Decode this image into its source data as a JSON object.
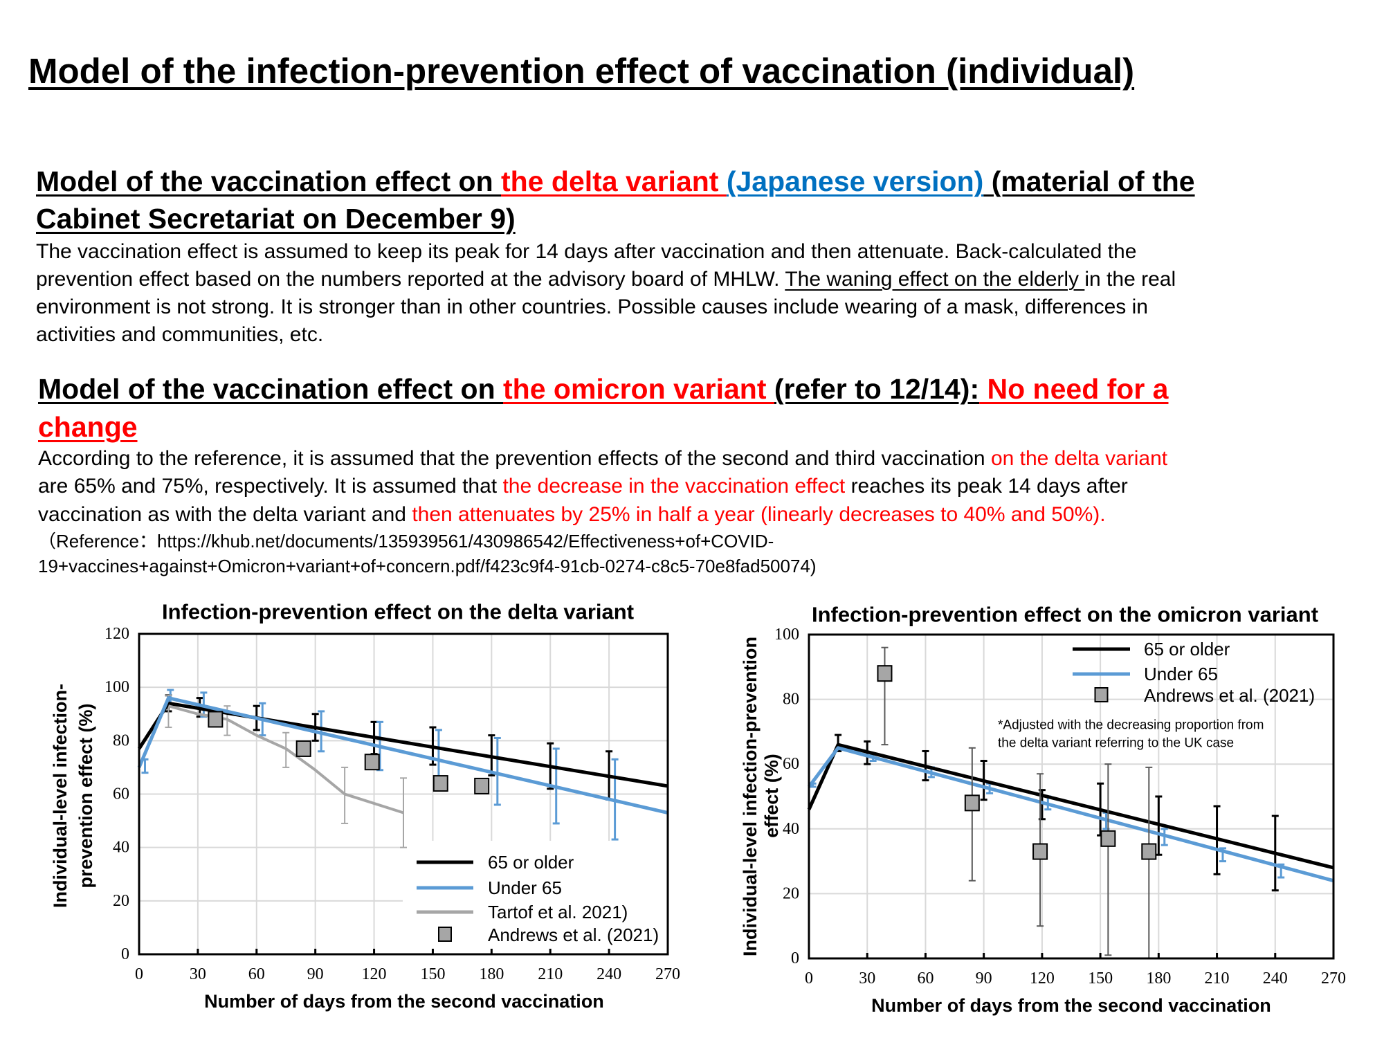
{
  "title": "Model of the infection-prevention effect of vaccination (individual)",
  "colors": {
    "red": "#ff0000",
    "blue": "#0070c0",
    "black": "#000000"
  },
  "section1": {
    "heading": [
      [
        {
          "text": "Model of the vaccination effect on ",
          "color": "black",
          "u": true
        },
        {
          "text": "the delta variant ",
          "color": "red",
          "u": true
        },
        {
          "text": "(Japanese version)",
          "color": "blue",
          "u": true
        },
        {
          "text": " (material of the",
          "color": "black",
          "u": true
        }
      ],
      [
        {
          "text": "Cabinet Secretariat on December 9)",
          "color": "black",
          "u": true
        }
      ]
    ],
    "body": [
      [
        {
          "text": "The vaccination effect is assumed to keep its peak for 14 days after vaccination and then attenuate. Back-calculated the",
          "color": "black"
        }
      ],
      [
        {
          "text": "prevention effect based on the numbers reported at the advisory board of MHLW. ",
          "color": "black"
        },
        {
          "text": "The waning effect on the elderly ",
          "color": "black",
          "u": true
        },
        {
          "text": "in the real",
          "color": "black"
        }
      ],
      [
        {
          "text": "environment is not strong. It is stronger than in other countries. Possible causes include wearing of a mask, differences in",
          "color": "black"
        }
      ],
      [
        {
          "text": "activities and communities, etc.",
          "color": "black"
        }
      ]
    ]
  },
  "section2": {
    "heading": [
      [
        {
          "text": "Model of the vaccination effect on ",
          "color": "black",
          "u": true
        },
        {
          "text": "the omicron variant ",
          "color": "red",
          "u": true
        },
        {
          "text": "(refer to 12/14):",
          "color": "black",
          "u": true
        },
        {
          "text": " No need for a",
          "color": "red",
          "u": true
        }
      ],
      [
        {
          "text": "change",
          "color": "red",
          "u": true
        }
      ]
    ],
    "body": [
      [
        {
          "text": "According to the reference, it is assumed that the prevention effects of the second and third vaccination ",
          "color": "black"
        },
        {
          "text": "on the delta variant",
          "color": "red"
        }
      ],
      [
        {
          "text": "are 65% and 75%, respectively. It is assumed that ",
          "color": "black"
        },
        {
          "text": "the decrease in the vaccination effect",
          "color": "red"
        },
        {
          "text": " reaches its peak 14 days after",
          "color": "black"
        }
      ],
      [
        {
          "text": "vaccination as with the delta variant and ",
          "color": "black"
        },
        {
          "text": "then attenuates by 25% in half a year (linearly decreases to 40% and 50%).",
          "color": "red"
        }
      ]
    ],
    "reference": [
      [
        {
          "text": "（Reference：https://khub.net/documents/135939561/430986542/Effectiveness+of+COVID-",
          "color": "black"
        }
      ],
      [
        {
          "text": "19+vaccines+against+Omicron+variant+of+concern.pdf/f423c9f4-91cb-0274-c8c5-70e8fad50074)",
          "color": "black"
        }
      ]
    ]
  },
  "chart_data": [
    {
      "type": "line",
      "title": "Infection-prevention effect on the delta variant",
      "xlabel": "Number of days from the second vaccination",
      "ylabel_lines": [
        "Individual-level infection-",
        "prevention effect (%)"
      ],
      "xlim": [
        0,
        270
      ],
      "ylim": [
        0,
        120
      ],
      "xticks": [
        0,
        30,
        60,
        90,
        120,
        150,
        180,
        210,
        240,
        270
      ],
      "yticks": [
        0,
        20,
        40,
        60,
        80,
        100,
        120
      ],
      "grid": true,
      "legend_position": "bottom-right",
      "series": [
        {
          "name": "65 or older",
          "color": "#000000",
          "x": [
            0,
            15,
            270
          ],
          "y": [
            77,
            94,
            63
          ],
          "error_bars": [
            {
              "x": 15,
              "low": 91,
              "high": 97
            },
            {
              "x": 31,
              "low": 89,
              "high": 96
            },
            {
              "x": 60,
              "low": 84,
              "high": 93
            },
            {
              "x": 90,
              "low": 80,
              "high": 90
            },
            {
              "x": 120,
              "low": 75,
              "high": 87
            },
            {
              "x": 150,
              "low": 71,
              "high": 85
            },
            {
              "x": 180,
              "low": 67,
              "high": 82
            },
            {
              "x": 210,
              "low": 62,
              "high": 79
            },
            {
              "x": 240,
              "low": 58,
              "high": 76
            }
          ]
        },
        {
          "name": "Under 65",
          "color": "#5b9bd5",
          "x": [
            0,
            15,
            270
          ],
          "y": [
            70,
            96,
            53
          ],
          "error_bars": [
            {
              "x": 3,
              "low": 68,
              "high": 73
            },
            {
              "x": 16,
              "low": 93,
              "high": 99
            },
            {
              "x": 33,
              "low": 89,
              "high": 98
            },
            {
              "x": 63,
              "low": 82,
              "high": 94
            },
            {
              "x": 93,
              "low": 76,
              "high": 91
            },
            {
              "x": 123,
              "low": 69,
              "high": 87
            },
            {
              "x": 153,
              "low": 62,
              "high": 84
            },
            {
              "x": 183,
              "low": 56,
              "high": 81
            },
            {
              "x": 213,
              "low": 49,
              "high": 77
            },
            {
              "x": 243,
              "low": 43,
              "high": 73
            }
          ]
        },
        {
          "name": "Tartof et al.  2021)",
          "color": "#a6a6a6",
          "x": [
            15,
            30,
            45,
            60,
            75,
            90,
            105,
            135
          ],
          "y": [
            93,
            90,
            88,
            82,
            77,
            69,
            60,
            53
          ],
          "error_bars": [
            {
              "x": 15,
              "low": 85,
              "high": 97
            },
            {
              "x": 45,
              "low": 82,
              "high": 93
            },
            {
              "x": 75,
              "low": 70,
              "high": 83
            },
            {
              "x": 105,
              "low": 49,
              "high": 70
            },
            {
              "x": 135,
              "low": 40,
              "high": 66
            }
          ]
        }
      ],
      "markers": {
        "name": "Andrews et al. (2021)",
        "color": "#a6a6a6",
        "points": [
          {
            "x": 39,
            "y": 88
          },
          {
            "x": 84,
            "y": 77
          },
          {
            "x": 119,
            "y": 72
          },
          {
            "x": 154,
            "y": 64
          },
          {
            "x": 175,
            "y": 63
          }
        ]
      }
    },
    {
      "type": "line",
      "title": "Infection-prevention effect on the omicron variant",
      "xlabel": "Number of days from the second vaccination",
      "ylabel_lines": [
        "Individual-level infection-prevention",
        "effect  (%)"
      ],
      "xlim": [
        0,
        270
      ],
      "ylim": [
        0,
        100
      ],
      "xticks": [
        0,
        30,
        60,
        90,
        120,
        150,
        180,
        210,
        240,
        270
      ],
      "yticks": [
        0,
        20,
        40,
        60,
        80,
        100
      ],
      "grid": true,
      "legend_position": "top-right",
      "note": [
        "*Adjusted with the decreasing proportion from",
        "the delta variant referring to the UK case"
      ],
      "series": [
        {
          "name": "65 or older",
          "color": "#000000",
          "x": [
            0,
            15,
            270
          ],
          "y": [
            46,
            66,
            28
          ],
          "error_bars": [
            {
              "x": 15,
              "low": 64,
              "high": 69
            },
            {
              "x": 30,
              "low": 60,
              "high": 67
            },
            {
              "x": 60,
              "low": 55,
              "high": 64
            },
            {
              "x": 90,
              "low": 49,
              "high": 61
            },
            {
              "x": 120,
              "low": 43,
              "high": 52
            },
            {
              "x": 150,
              "low": 38,
              "high": 54
            },
            {
              "x": 180,
              "low": 32,
              "high": 50
            },
            {
              "x": 210,
              "low": 26,
              "high": 47
            },
            {
              "x": 240,
              "low": 21,
              "high": 44
            }
          ]
        },
        {
          "name": "Under 65",
          "color": "#5b9bd5",
          "x": [
            0,
            15,
            270
          ],
          "y": [
            53,
            65,
            24
          ],
          "error_bars": [
            {
              "x": 2,
              "low": 53,
              "high": 54
            },
            {
              "x": 33,
              "low": 61,
              "high": 63
            },
            {
              "x": 63,
              "low": 56,
              "high": 59
            },
            {
              "x": 93,
              "low": 51,
              "high": 54
            },
            {
              "x": 123,
              "low": 46,
              "high": 50
            },
            {
              "x": 153,
              "low": 40,
              "high": 45
            },
            {
              "x": 183,
              "low": 35,
              "high": 40
            },
            {
              "x": 213,
              "low": 30,
              "high": 34
            },
            {
              "x": 243,
              "low": 25,
              "high": 29
            }
          ]
        }
      ],
      "markers": {
        "name": "Andrews et al. (2021)",
        "color": "#a6a6a6",
        "points": [
          {
            "x": 39,
            "y": 88,
            "low": 66,
            "high": 96
          },
          {
            "x": 84,
            "y": 48,
            "low": 24,
            "high": 65
          },
          {
            "x": 119,
            "y": 33,
            "low": 10,
            "high": 57
          },
          {
            "x": 154,
            "y": 37,
            "low": 1,
            "high": 60
          },
          {
            "x": 175,
            "y": 33,
            "low": 0,
            "high": 59
          }
        ]
      }
    }
  ]
}
